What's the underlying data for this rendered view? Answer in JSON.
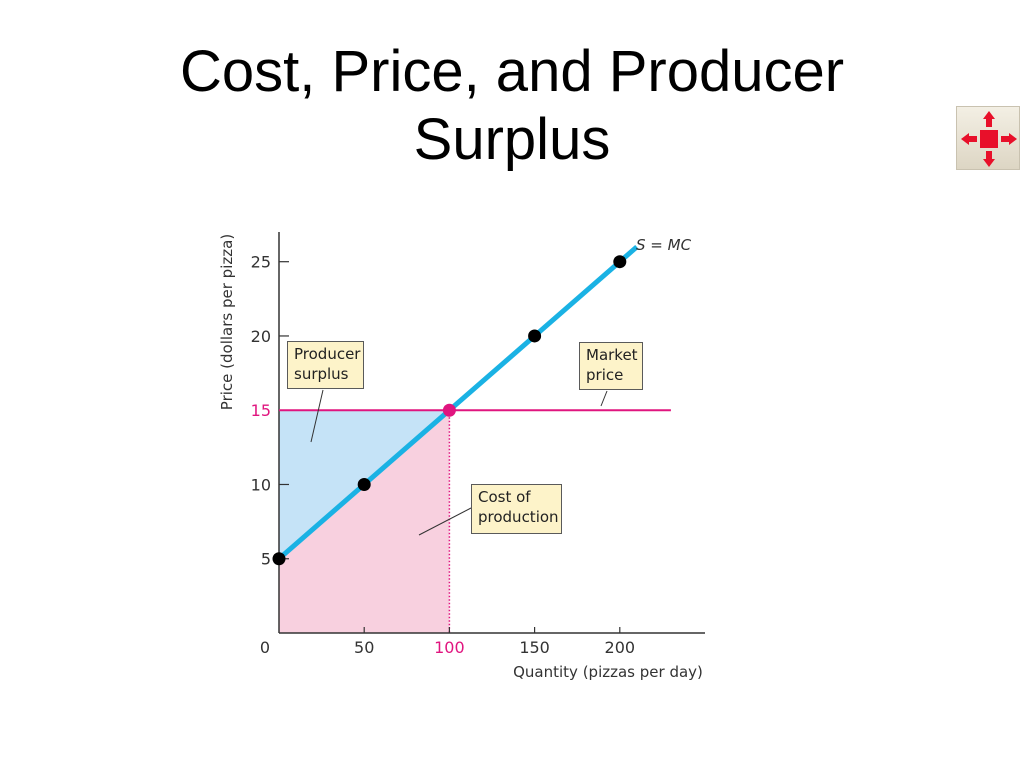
{
  "title_lines": [
    "Cost, Price, and Producer",
    "Surplus"
  ],
  "nav_button": {
    "icon": "arrows-inward-icon",
    "color": "#e8102a"
  },
  "chart_data": {
    "type": "line",
    "xlabel": "Quantity (pizzas per day)",
    "ylabel": "Price (dollars per pizza)",
    "xlim": [
      0,
      250
    ],
    "ylim": [
      0,
      27
    ],
    "x_ticks": [
      0,
      50,
      100,
      150,
      200
    ],
    "x_tick_labels": [
      "0",
      "50",
      "100",
      "150",
      "200"
    ],
    "y_ticks": [
      5,
      10,
      15,
      20,
      25
    ],
    "y_tick_labels": [
      "5",
      "10",
      "15",
      "20",
      "25"
    ],
    "grid": false,
    "series": [
      {
        "name": "S = MC",
        "color": "#1ab2e4",
        "x": [
          0,
          50,
          100,
          150,
          200
        ],
        "y": [
          5,
          10,
          15,
          20,
          25
        ],
        "line_x_end": 210,
        "line_y_end": 26
      }
    ],
    "market_price": {
      "value": 15,
      "x_end": 230,
      "color": "#e0157f"
    },
    "equilibrium": {
      "x": 100,
      "y": 15,
      "color": "#e0157f"
    },
    "shaded_regions": [
      {
        "name": "Producer surplus",
        "color": "#c5e3f7"
      },
      {
        "name": "Cost of production",
        "color": "#f8d0df"
      }
    ],
    "annotations": {
      "producer_surplus": [
        "Producer",
        "surplus"
      ],
      "market_price": [
        "Market",
        "price"
      ],
      "cost_of_production": [
        "Cost of",
        "production"
      ]
    },
    "highlight_color": "#e0157f"
  }
}
